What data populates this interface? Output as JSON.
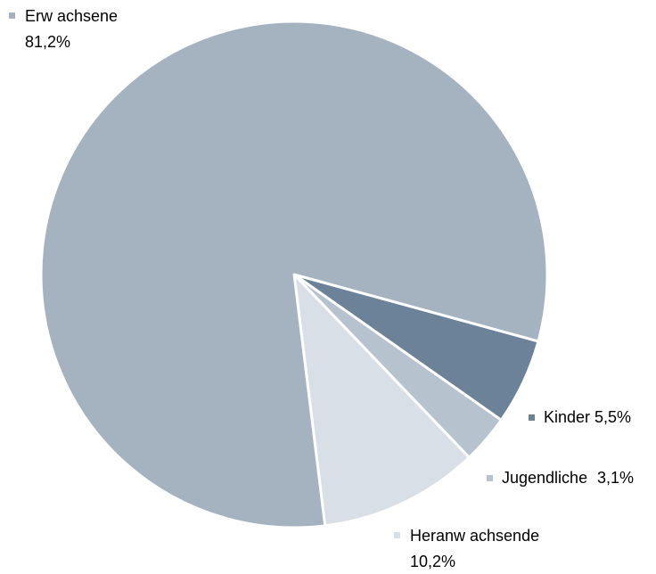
{
  "chart_data": {
    "type": "pie",
    "title": "",
    "slices": [
      {
        "label": "Erw achsene",
        "value": 81.2,
        "value_label": "81,2%",
        "color": "#a5b3c1"
      },
      {
        "label": "Kinder",
        "value": 5.5,
        "value_label": "5,5%",
        "color": "#6b8299"
      },
      {
        "label": "Jugendliche",
        "value": 3.1,
        "value_label": "3,1%",
        "color": "#b6c2ce"
      },
      {
        "label": "Heranw achsende",
        "value": 10.2,
        "value_label": "10,2%",
        "color": "#d9dfe6"
      }
    ],
    "legend": "labels next to slices"
  }
}
